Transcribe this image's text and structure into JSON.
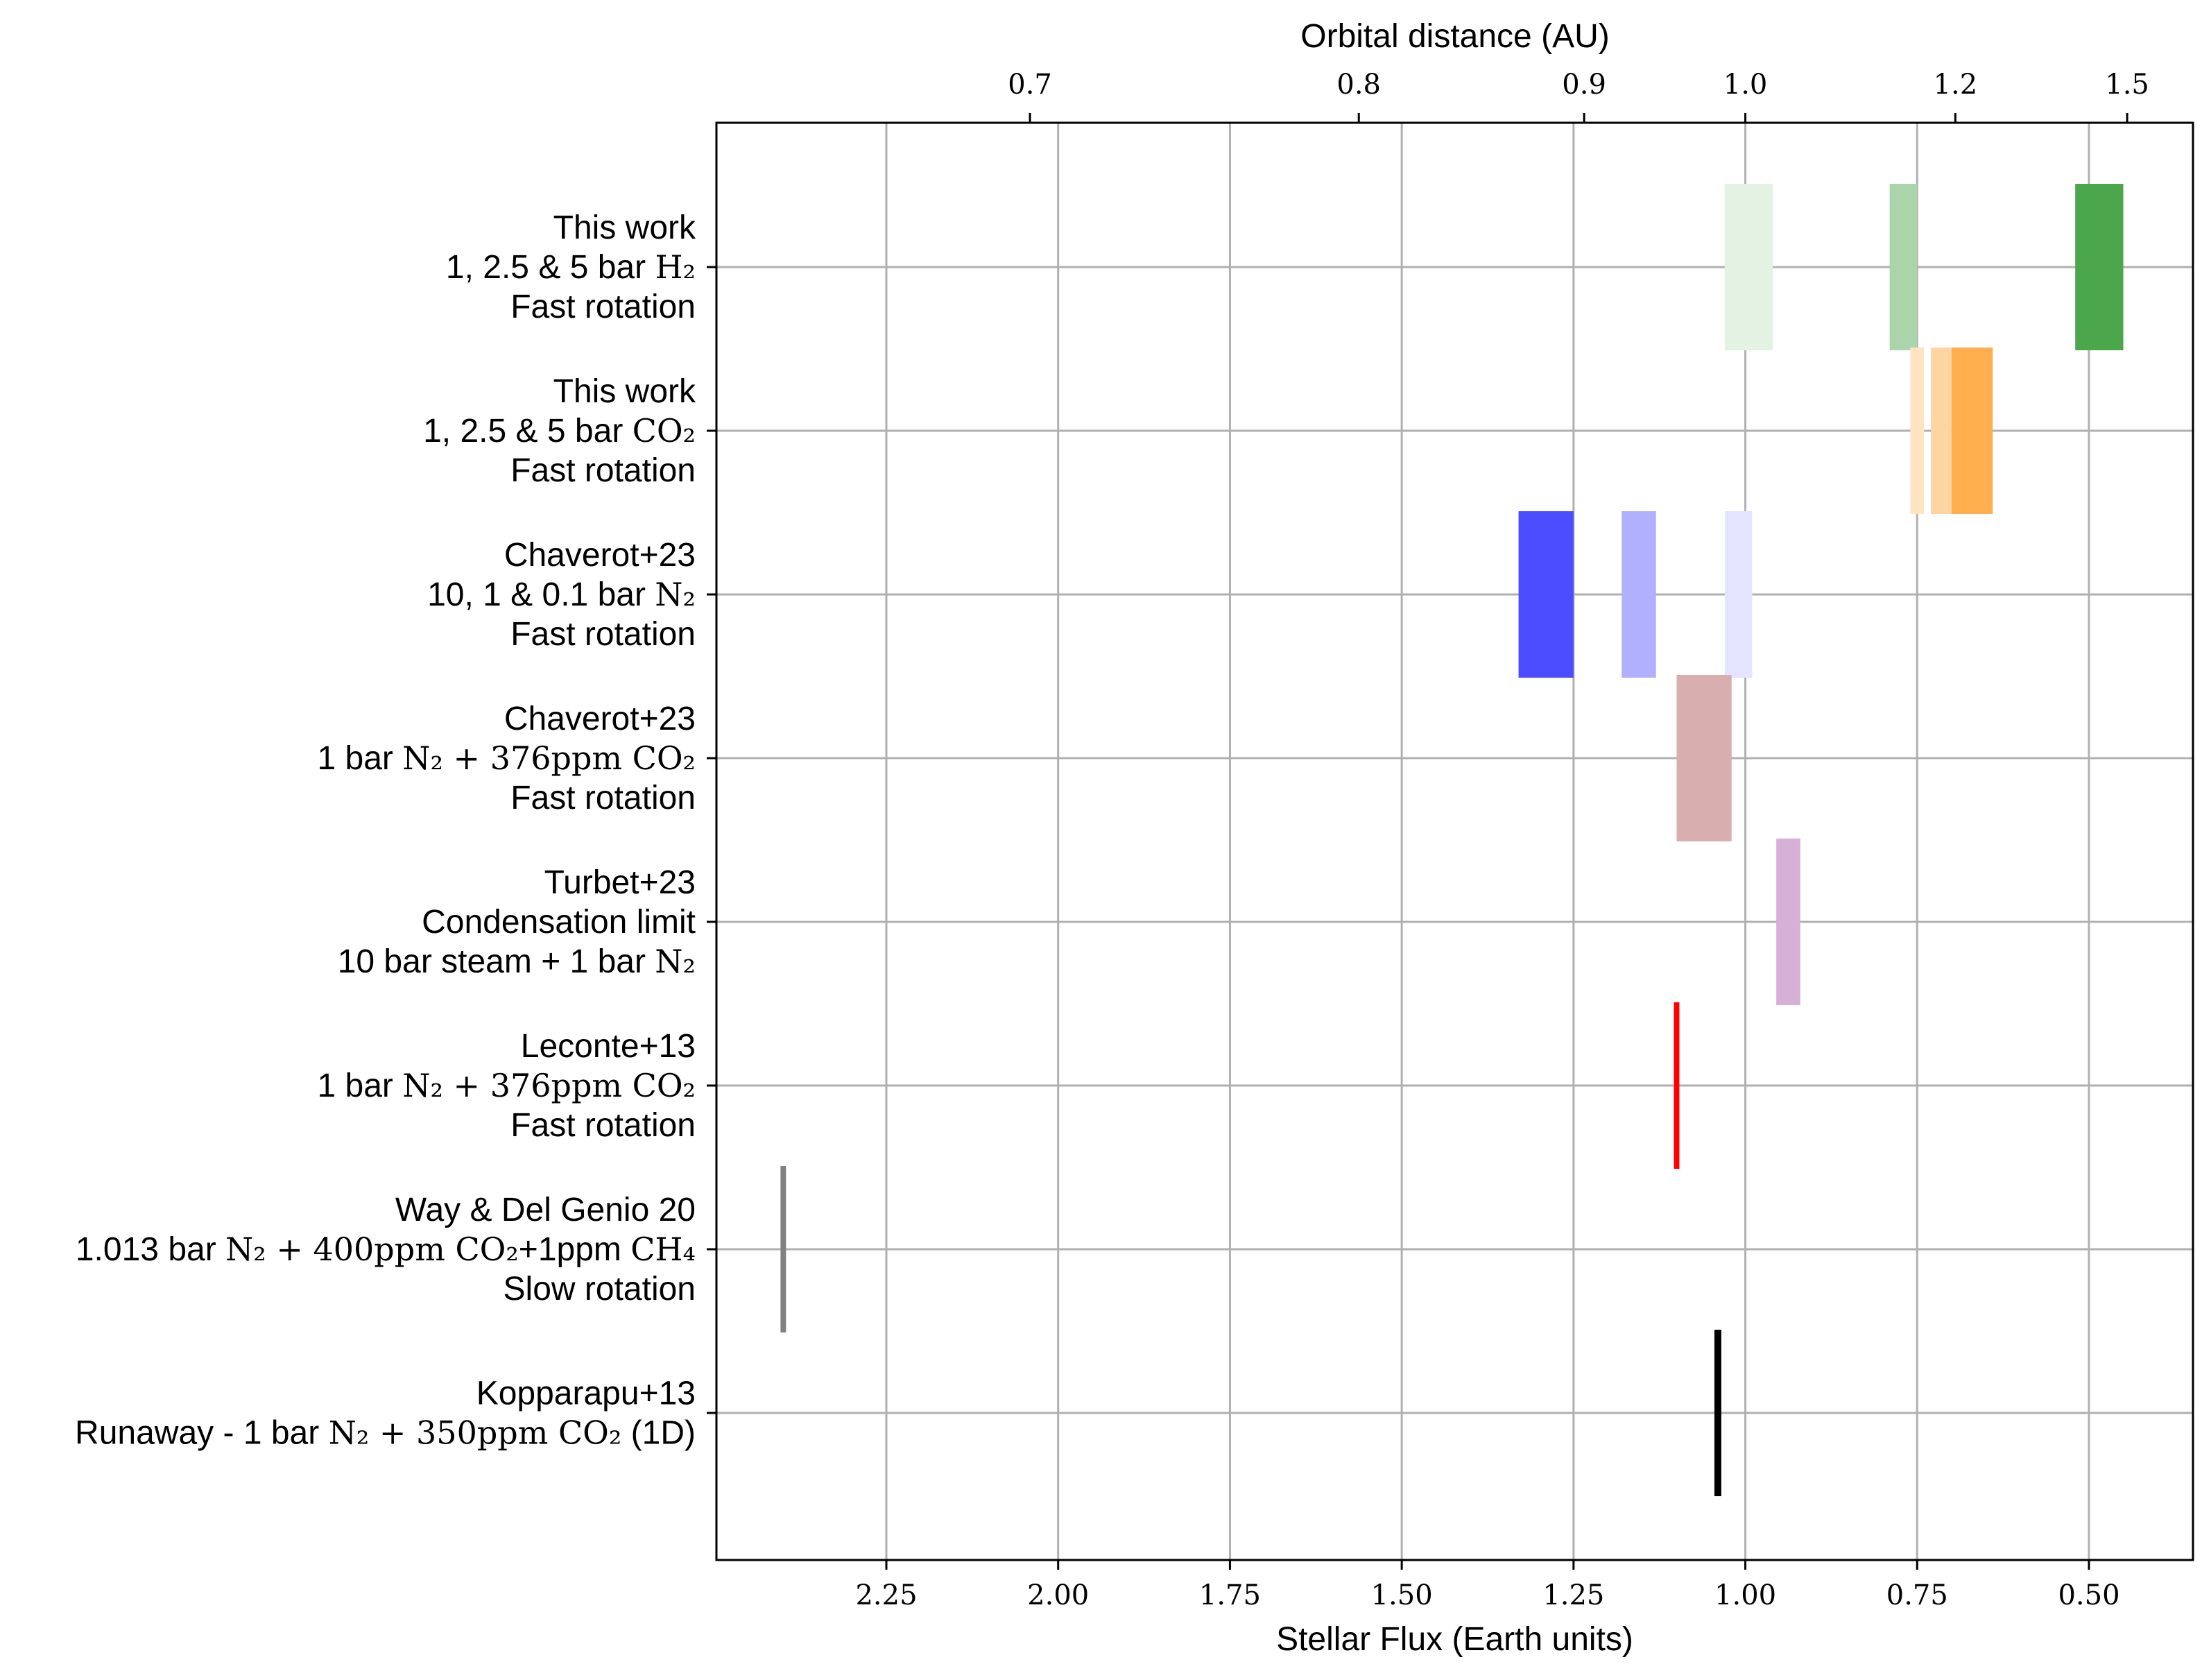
{
  "chart_data": {
    "type": "range-bar",
    "title": "",
    "xlabel": "Stellar Flux (Earth units)",
    "x2label": "Orbital distance (AU)",
    "xlim": [
      2.5,
      0.35
    ],
    "x_reversed": true,
    "xticks": [
      2.25,
      2.0,
      1.75,
      1.5,
      1.25,
      1.0,
      0.75,
      0.5
    ],
    "xtick_labels": [
      "2.25",
      "2.00",
      "1.75",
      "1.50",
      "1.25",
      "1.00",
      "0.75",
      "0.50"
    ],
    "top_ticks": [
      {
        "label": "0.7",
        "flux": 2.041
      },
      {
        "label": "0.8",
        "flux": 1.5625
      },
      {
        "label": "0.9",
        "flux": 1.2346
      },
      {
        "label": "1.0",
        "flux": 1.0
      },
      {
        "label": "1.2",
        "flux": 0.6944
      },
      {
        "label": "1.5",
        "flux": 0.4444
      }
    ],
    "grid": true,
    "rows": [
      {
        "lines": [
          {
            "sans": "This work"
          },
          {
            "sans": "1, 2.5 & 5 bar ",
            "serif": "H₂"
          },
          {
            "sans": "Fast rotation"
          }
        ]
      },
      {
        "lines": [
          {
            "sans": "This work"
          },
          {
            "sans": "1, 2.5 & 5 bar ",
            "serif": "CO₂"
          },
          {
            "sans": "Fast rotation"
          }
        ]
      },
      {
        "lines": [
          {
            "sans": "Chaverot+23"
          },
          {
            "sans": "10, 1 & 0.1 bar ",
            "serif": "N₂"
          },
          {
            "sans": "Fast rotation"
          }
        ]
      },
      {
        "lines": [
          {
            "sans": "Chaverot+23"
          },
          {
            "sans": "1 bar ",
            "serif": "N₂ + 376ppm CO₂"
          },
          {
            "sans": "Fast rotation"
          }
        ]
      },
      {
        "lines": [
          {
            "sans": "Turbet+23"
          },
          {
            "sans": "Condensation limit"
          },
          {
            "sans": "10 bar steam + 1 bar ",
            "serif": "N₂"
          }
        ]
      },
      {
        "lines": [
          {
            "sans": "Leconte+13"
          },
          {
            "sans": "1 bar ",
            "serif": "N₂ + 376ppm CO₂"
          },
          {
            "sans": "Fast rotation"
          }
        ]
      },
      {
        "lines": [
          {
            "sans": "Way & Del Genio 20"
          },
          {
            "sans": "1.013 bar ",
            "serif": "N₂ + 400ppm CO₂",
            "sans2": "+1ppm ",
            "serif2": "CH₄"
          },
          {
            "sans": "Slow rotation"
          }
        ]
      },
      {
        "lines": [
          {
            "sans": "Kopparapu+13"
          },
          {
            "sans": "Runaway - 1 bar ",
            "serif": "N₂ + 350ppm CO₂",
            "sans2": " (1D)"
          }
        ]
      }
    ],
    "series": [
      {
        "name": "This work 1 bar H2",
        "row": 0,
        "x0": 1.03,
        "x1": 0.96,
        "color": "#e4f2e4"
      },
      {
        "name": "This work 2.5 bar H2",
        "row": 0,
        "x0": 0.79,
        "x1": 0.75,
        "color": "#aad5aa"
      },
      {
        "name": "This work 5 bar H2",
        "row": 0,
        "x0": 0.52,
        "x1": 0.45,
        "color": "#4ca64c"
      },
      {
        "name": "This work 1 bar CO2",
        "row": 1,
        "x0": 0.76,
        "x1": 0.74,
        "color": "#ffe4c4"
      },
      {
        "name": "This work 2.5 bar CO2",
        "row": 1,
        "x0": 0.73,
        "x1": 0.7,
        "color": "#ffd4a3"
      },
      {
        "name": "This work 5 bar CO2",
        "row": 1,
        "x0": 0.7,
        "x1": 0.64,
        "color": "#ffaf4d"
      },
      {
        "name": "Chaverot+23 10 bar N2",
        "row": 2,
        "x0": 1.33,
        "x1": 1.25,
        "color": "#4c4cff"
      },
      {
        "name": "Chaverot+23 1 bar N2",
        "row": 2,
        "x0": 1.18,
        "x1": 1.13,
        "color": "#b0b0ff"
      },
      {
        "name": "Chaverot+23 0.1 bar N2",
        "row": 2,
        "x0": 1.03,
        "x1": 0.99,
        "color": "#e4e4ff"
      },
      {
        "name": "Chaverot+23 1 bar N2 + 376ppm CO2",
        "row": 3,
        "x0": 1.1,
        "x1": 1.02,
        "color": "#d9aeae"
      },
      {
        "name": "Turbet+23",
        "row": 4,
        "x0": 0.955,
        "x1": 0.92,
        "color": "#d7b0d7"
      },
      {
        "name": "Leconte+13",
        "row": 5,
        "x0": 1.104,
        "x1": 1.096,
        "color": "#ff0000"
      },
      {
        "name": "Way & Del Genio 20",
        "row": 6,
        "x0": 2.404,
        "x1": 2.396,
        "color": "#808080"
      },
      {
        "name": "Kopparapu+13",
        "row": 7,
        "x0": 1.045,
        "x1": 1.035,
        "color": "#000000"
      }
    ],
    "colors": {
      "grid": "#b0b0b0",
      "axis": "#000000"
    }
  }
}
